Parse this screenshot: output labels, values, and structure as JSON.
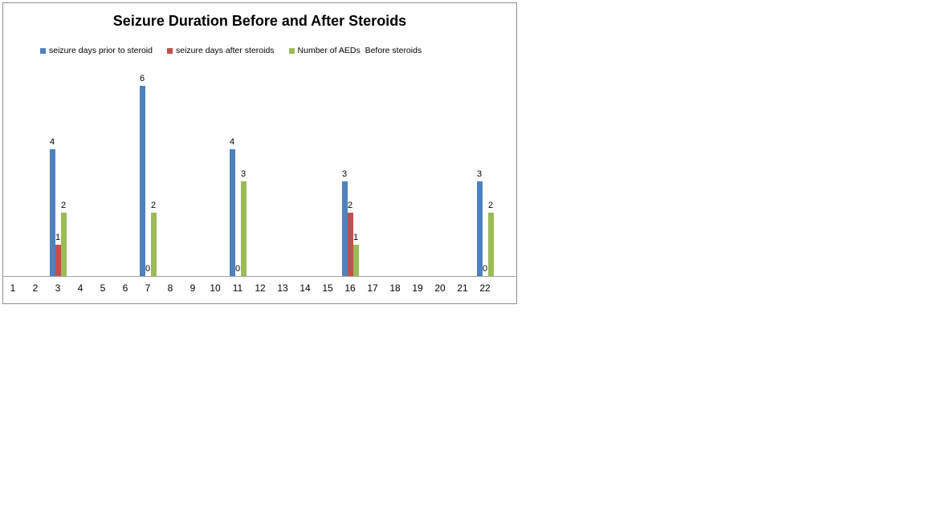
{
  "page": {
    "background": "#ffffff"
  },
  "chart_data": {
    "type": "bar",
    "title": "Seizure Duration Before and After Steroids",
    "categories": [
      "1",
      "2",
      "3",
      "4",
      "5",
      "6",
      "7",
      "8",
      "9",
      "10",
      "11",
      "12",
      "13",
      "14",
      "15",
      "16",
      "17",
      "18",
      "19",
      "20",
      "21",
      "22"
    ],
    "series": [
      {
        "name": "seizure days prior to steroid",
        "color": "#4f81bd",
        "values": [
          null,
          null,
          4,
          null,
          null,
          null,
          6,
          null,
          null,
          null,
          4,
          null,
          null,
          null,
          null,
          3,
          null,
          null,
          null,
          null,
          null,
          3
        ]
      },
      {
        "name": "seizure days after steroids",
        "color": "#c0504d",
        "values": [
          null,
          null,
          1,
          null,
          null,
          null,
          0,
          null,
          null,
          null,
          0,
          null,
          null,
          null,
          null,
          2,
          null,
          null,
          null,
          null,
          null,
          0
        ]
      },
      {
        "name": "Number of AEDs  Before steroids",
        "color": "#9bbb59",
        "values": [
          null,
          null,
          2,
          null,
          null,
          null,
          2,
          null,
          null,
          null,
          3,
          null,
          null,
          null,
          null,
          1,
          null,
          null,
          null,
          null,
          null,
          2
        ]
      }
    ],
    "xlabel": "",
    "ylabel": "",
    "ylim": [
      0,
      6
    ],
    "gridlines": false,
    "legend_position": "top",
    "data_labels": true,
    "axis_color": "#a0a0a0",
    "frame_border_color": "#8e8e8e",
    "text_color": "#000000"
  }
}
